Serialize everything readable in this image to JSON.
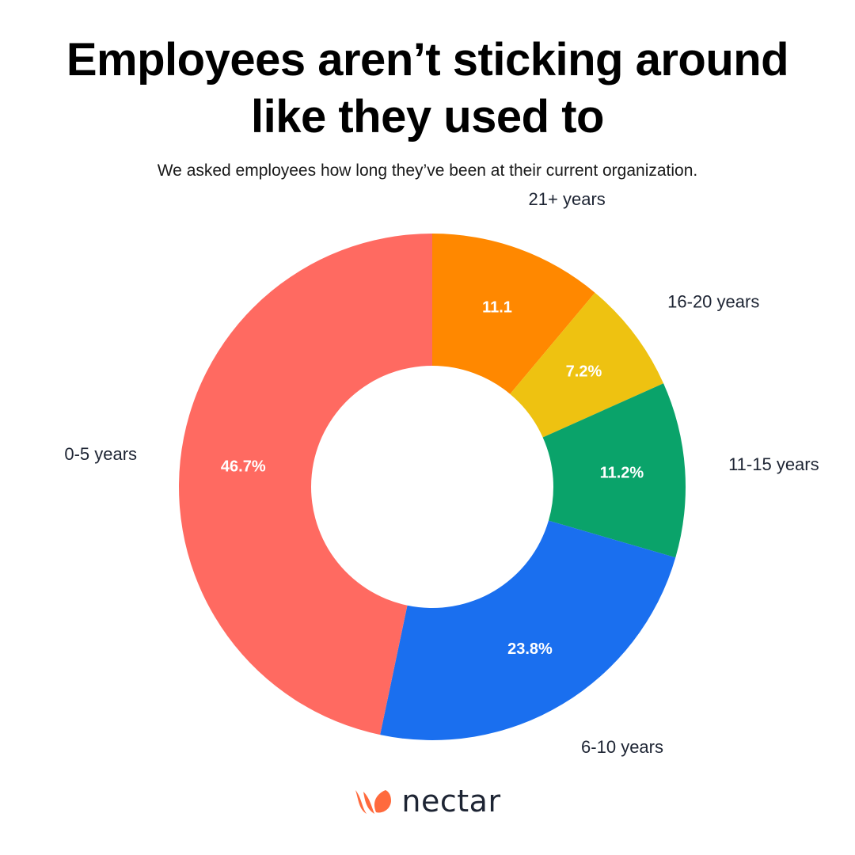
{
  "header": {
    "title_line1": "Employees aren’t sticking around",
    "title_line2": "like they used to",
    "subtitle": "We asked employees how long they’ve been at their current organization."
  },
  "brand": {
    "name": "nectar",
    "logo_icon": "nectar-petal-logo-icon",
    "logo_color": "#FF6A3D"
  },
  "chart_data": {
    "type": "pie",
    "style": "donut",
    "start": "top, clockwise",
    "slices": [
      {
        "category": "21+ years",
        "value": 11.1,
        "value_label": "11.1",
        "color": "#FF8800"
      },
      {
        "category": "16-20 years",
        "value": 7.2,
        "value_label": "7.2%",
        "color": "#EEC211"
      },
      {
        "category": "11-15 years",
        "value": 11.2,
        "value_label": "11.2%",
        "color": "#0AA36A"
      },
      {
        "category": "6-10 years",
        "value": 23.8,
        "value_label": "23.8%",
        "color": "#1A6FEF"
      },
      {
        "category": "0-5 years",
        "value": 46.7,
        "value_label": "46.7%",
        "color": "#FF6A61"
      }
    ]
  }
}
